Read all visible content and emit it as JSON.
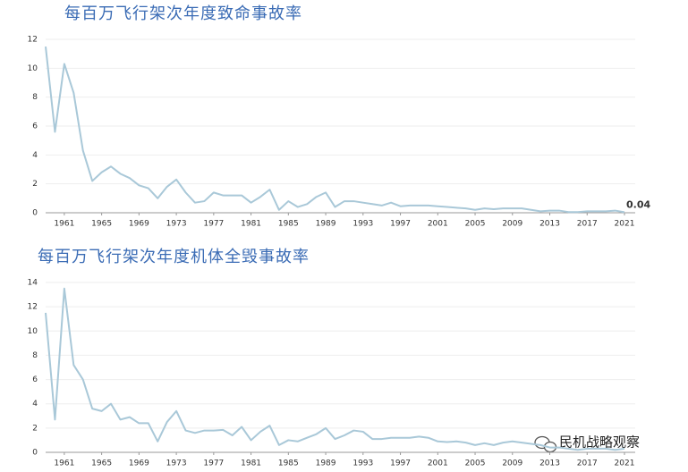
{
  "chart_data": [
    {
      "type": "line",
      "title": "每百万飞行架次年度致命事故率",
      "x": [
        1959,
        1960,
        1961,
        1962,
        1963,
        1964,
        1965,
        1966,
        1967,
        1968,
        1969,
        1970,
        1971,
        1972,
        1973,
        1974,
        1975,
        1976,
        1977,
        1978,
        1979,
        1980,
        1981,
        1982,
        1983,
        1984,
        1985,
        1986,
        1987,
        1988,
        1989,
        1990,
        1991,
        1992,
        1993,
        1994,
        1995,
        1996,
        1997,
        1998,
        1999,
        2000,
        2001,
        2002,
        2003,
        2004,
        2005,
        2006,
        2007,
        2008,
        2009,
        2010,
        2011,
        2012,
        2013,
        2014,
        2015,
        2016,
        2017,
        2018,
        2019,
        2020,
        2021
      ],
      "series": [
        {
          "color": "#a9c8d8",
          "values": [
            11.5,
            5.6,
            10.3,
            8.3,
            4.3,
            2.2,
            2.8,
            3.2,
            2.7,
            2.4,
            1.9,
            1.7,
            1.0,
            1.8,
            2.3,
            1.4,
            0.7,
            0.8,
            1.4,
            1.2,
            1.2,
            1.2,
            0.7,
            1.1,
            1.6,
            0.2,
            0.8,
            0.4,
            0.6,
            1.1,
            1.4,
            0.4,
            0.8,
            0.8,
            0.7,
            0.6,
            0.5,
            0.7,
            0.45,
            0.5,
            0.5,
            0.5,
            0.45,
            0.4,
            0.35,
            0.3,
            0.2,
            0.3,
            0.25,
            0.3,
            0.3,
            0.3,
            0.2,
            0.1,
            0.15,
            0.15,
            0.05,
            0.05,
            0.1,
            0.1,
            0.1,
            0.15,
            0.04
          ],
          "value_labels": [
            null,
            null,
            null,
            null,
            null,
            null,
            null,
            null,
            null,
            null,
            null,
            null,
            null,
            null,
            null,
            null,
            null,
            null,
            null,
            null,
            null,
            null,
            null,
            null,
            null,
            null,
            null,
            null,
            null,
            null,
            null,
            null,
            null,
            null,
            null,
            null,
            null,
            null,
            null,
            null,
            null,
            null,
            null,
            null,
            null,
            null,
            null,
            null,
            null,
            null,
            null,
            null,
            null,
            null,
            null,
            null,
            null,
            null,
            null,
            null,
            null,
            null,
            "0.04"
          ]
        }
      ],
      "xlim": [
        1959,
        2021
      ],
      "xticks": [
        1961,
        1965,
        1969,
        1973,
        1977,
        1981,
        1985,
        1989,
        1993,
        1997,
        2001,
        2005,
        2009,
        2013,
        2017,
        2021
      ],
      "ylim": [
        0,
        12
      ],
      "yticks": [
        0,
        2,
        4,
        6,
        8,
        10,
        12
      ],
      "grid": true
    },
    {
      "type": "line",
      "title": "每百万飞行架次年度机体全毁事故率",
      "x": [
        1959,
        1960,
        1961,
        1962,
        1963,
        1964,
        1965,
        1966,
        1967,
        1968,
        1969,
        1970,
        1971,
        1972,
        1973,
        1974,
        1975,
        1976,
        1977,
        1978,
        1979,
        1980,
        1981,
        1982,
        1983,
        1984,
        1985,
        1986,
        1987,
        1988,
        1989,
        1990,
        1991,
        1992,
        1993,
        1994,
        1995,
        1996,
        1997,
        1998,
        1999,
        2000,
        2001,
        2002,
        2003,
        2004,
        2005,
        2006,
        2007,
        2008,
        2009,
        2010,
        2011,
        2012,
        2013,
        2014,
        2015,
        2016,
        2017,
        2018,
        2019,
        2020,
        2021
      ],
      "series": [
        {
          "color": "#a9c8d8",
          "values": [
            11.5,
            2.7,
            13.5,
            7.2,
            6.0,
            3.6,
            3.4,
            4.0,
            2.7,
            2.9,
            2.4,
            2.4,
            0.9,
            2.5,
            3.4,
            1.8,
            1.6,
            1.8,
            1.8,
            1.85,
            1.4,
            2.1,
            1.0,
            1.7,
            2.2,
            0.6,
            1.0,
            0.9,
            1.2,
            1.5,
            2.0,
            1.1,
            1.4,
            1.8,
            1.7,
            1.1,
            1.1,
            1.2,
            1.2,
            1.2,
            1.3,
            1.2,
            0.9,
            0.85,
            0.9,
            0.8,
            0.6,
            0.75,
            0.6,
            0.8,
            0.9,
            0.8,
            0.7,
            0.6,
            0.4,
            0.4,
            0.3,
            0.2,
            0.3,
            0.3,
            0.3,
            0.2,
            0.3
          ]
        }
      ],
      "xlim": [
        1959,
        2021
      ],
      "xticks": [
        1961,
        1965,
        1969,
        1973,
        1977,
        1981,
        1985,
        1989,
        1993,
        1997,
        2001,
        2005,
        2009,
        2013,
        2017,
        2021
      ],
      "ylim": [
        0,
        14
      ],
      "yticks": [
        0,
        2,
        4,
        6,
        8,
        10,
        12,
        14
      ],
      "grid": true
    }
  ],
  "watermark": "民机战略观察"
}
